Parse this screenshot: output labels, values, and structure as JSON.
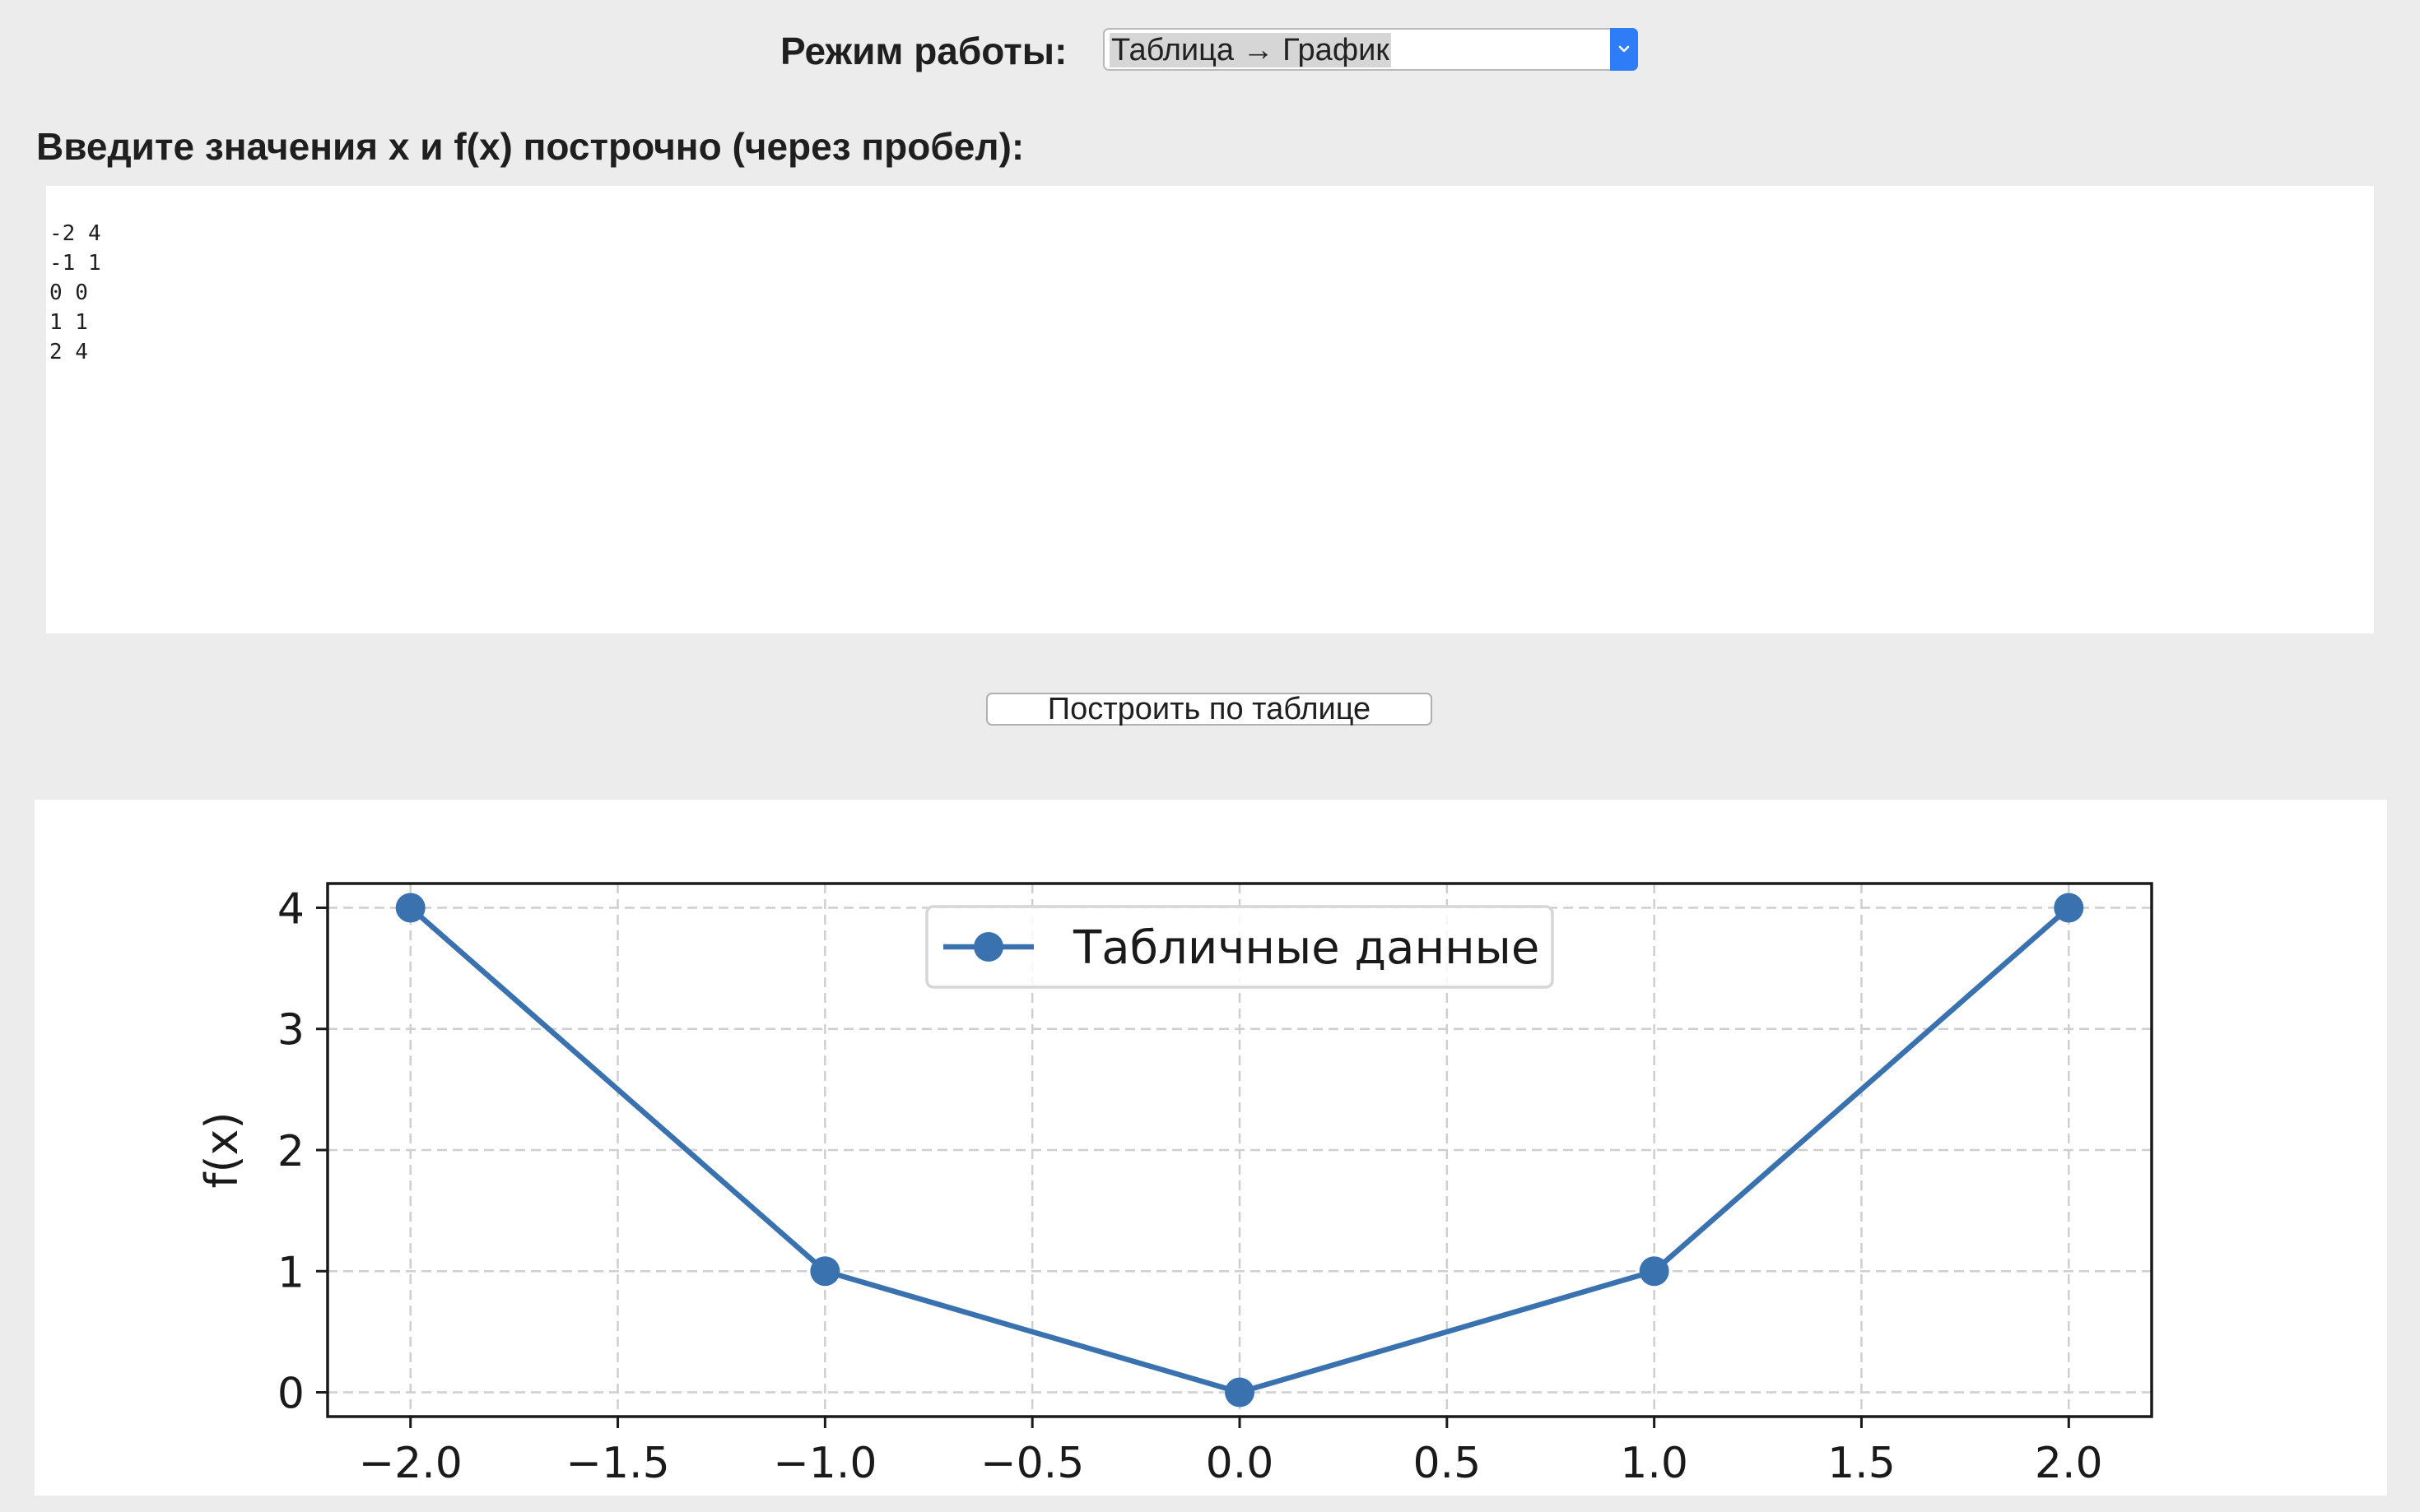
{
  "mode": {
    "label": "Режим работы:",
    "selected": "Таблица → График",
    "accent_color": "#2f7df6",
    "arrow_icon": "chevron-down-icon"
  },
  "input": {
    "heading": "Введите значения x и f(x) построчно (через пробел):",
    "value": "-2 4\n-1 1\n0 0\n1 1\n2 4"
  },
  "build_button": {
    "label": "Построить по таблице"
  },
  "chart_data": {
    "type": "line",
    "x": [
      -2,
      -1,
      0,
      1,
      2
    ],
    "series": [
      {
        "name": "Табличные данные",
        "values": [
          4,
          1,
          0,
          1,
          4
        ],
        "color": "#3a72b0",
        "marker": "circle"
      }
    ],
    "xticks": [
      -2.0,
      -1.5,
      -1.0,
      -0.5,
      0.0,
      0.5,
      1.0,
      1.5,
      2.0
    ],
    "xtick_labels": [
      "−2.0",
      "−1.5",
      "−1.0",
      "−0.5",
      "0.0",
      "0.5",
      "1.0",
      "1.5",
      "2.0"
    ],
    "yticks": [
      0,
      1,
      2,
      3,
      4
    ],
    "ytick_labels": [
      "0",
      "1",
      "2",
      "3",
      "4"
    ],
    "title": "",
    "xlabel": "",
    "ylabel": "f(x)",
    "xlim": [
      -2.2,
      2.2
    ],
    "ylim": [
      -0.2,
      4.2
    ],
    "grid": true,
    "grid_style": "dashed",
    "legend_position": "top-center"
  }
}
